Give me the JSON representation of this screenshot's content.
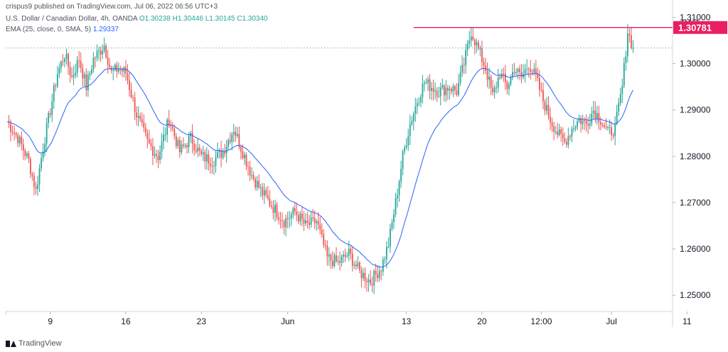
{
  "header": {
    "publish": "crispus9 published on TradingView.com, Jul 06, 2022 06:56 UTC+3",
    "symbol": "U.S. Dollar / Canadian Dollar, 4h, OANDA",
    "open": "O1.30238",
    "high": "H1.30446",
    "low": "L1.30145",
    "close": "C1.30340",
    "ema_label": "EMA (25, close, 0, SMA, 5)",
    "ema_value": "1.29337"
  },
  "footer": {
    "brand": "TradingView"
  },
  "colors": {
    "up": "#26a69a",
    "down": "#ef5350",
    "ema": "#2962ff",
    "resistance": "#e91e63",
    "price_line": "#26a69a"
  },
  "chart_data": {
    "type": "candlestick",
    "currency": "CAD",
    "ylim": [
      1.2465,
      1.3116
    ],
    "yticks": [
      1.31,
      1.3,
      1.29,
      1.28,
      1.27,
      1.26,
      1.25
    ],
    "ytick_labels": [
      "1.31000",
      "1.30000",
      "1.29000",
      "1.28000",
      "1.27000",
      "1.26000",
      "1.25000"
    ],
    "xticks": [
      {
        "label": "9",
        "bar": 24
      },
      {
        "label": "16",
        "bar": 66
      },
      {
        "label": "23",
        "bar": 108
      },
      {
        "label": "Jun",
        "bar": 156
      },
      {
        "label": "13",
        "bar": 222
      },
      {
        "label": "20",
        "bar": 264
      },
      {
        "label": "12:00",
        "bar": 297
      },
      {
        "label": "Jul",
        "bar": 336
      },
      {
        "label": "11",
        "bar": 378
      }
    ],
    "resistance": {
      "value": 1.30781,
      "label": "1.30781",
      "from_bar": 226
    },
    "last_price": 1.3034,
    "anchors": [
      [
        0,
        1.2875
      ],
      [
        6,
        1.284
      ],
      [
        12,
        1.279
      ],
      [
        16,
        1.2725
      ],
      [
        20,
        1.282
      ],
      [
        24,
        1.29
      ],
      [
        28,
        1.298
      ],
      [
        32,
        1.302
      ],
      [
        36,
        1.297
      ],
      [
        40,
        1.301
      ],
      [
        44,
        1.295
      ],
      [
        48,
        1.301
      ],
      [
        54,
        1.304
      ],
      [
        58,
        1.298
      ],
      [
        62,
        1.299
      ],
      [
        66,
        1.298
      ],
      [
        72,
        1.289
      ],
      [
        78,
        1.283
      ],
      [
        84,
        1.28
      ],
      [
        90,
        1.288
      ],
      [
        96,
        1.281
      ],
      [
        102,
        1.284
      ],
      [
        108,
        1.28
      ],
      [
        114,
        1.279
      ],
      [
        120,
        1.281
      ],
      [
        126,
        1.286
      ],
      [
        130,
        1.282
      ],
      [
        136,
        1.276
      ],
      [
        142,
        1.272
      ],
      [
        148,
        1.269
      ],
      [
        154,
        1.266
      ],
      [
        160,
        1.268
      ],
      [
        166,
        1.265
      ],
      [
        172,
        1.266
      ],
      [
        178,
        1.258
      ],
      [
        184,
        1.257
      ],
      [
        190,
        1.259
      ],
      [
        196,
        1.255
      ],
      [
        202,
        1.253
      ],
      [
        208,
        1.256
      ],
      [
        212,
        1.261
      ],
      [
        216,
        1.27
      ],
      [
        220,
        1.28
      ],
      [
        224,
        1.287
      ],
      [
        228,
        1.292
      ],
      [
        232,
        1.296
      ],
      [
        236,
        1.295
      ],
      [
        240,
        1.294
      ],
      [
        246,
        1.295
      ],
      [
        250,
        1.294
      ],
      [
        254,
        1.3
      ],
      [
        258,
        1.307
      ],
      [
        262,
        1.303
      ],
      [
        266,
        1.299
      ],
      [
        270,
        1.293
      ],
      [
        274,
        1.298
      ],
      [
        278,
        1.295
      ],
      [
        282,
        1.299
      ],
      [
        286,
        1.297
      ],
      [
        290,
        1.3
      ],
      [
        294,
        1.297
      ],
      [
        298,
        1.292
      ],
      [
        302,
        1.288
      ],
      [
        306,
        1.285
      ],
      [
        310,
        1.283
      ],
      [
        314,
        1.286
      ],
      [
        318,
        1.288
      ],
      [
        322,
        1.287
      ],
      [
        326,
        1.29
      ],
      [
        330,
        1.288
      ],
      [
        334,
        1.285
      ],
      [
        338,
        1.286
      ],
      [
        342,
        1.295
      ],
      [
        345,
        1.307
      ],
      [
        348,
        1.3034
      ]
    ]
  }
}
